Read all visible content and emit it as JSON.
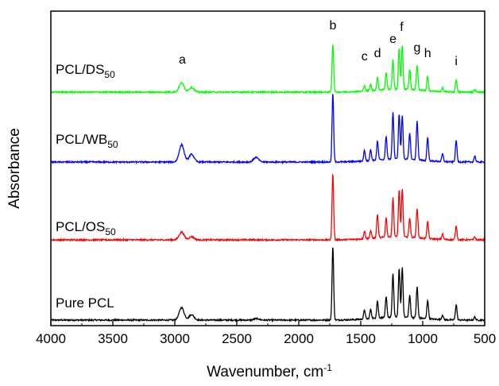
{
  "chart_data": {
    "type": "line",
    "xlabel": "Wavenumber, cm",
    "xlabel_superscript": "-1",
    "ylabel": "Absorbance",
    "xlim": [
      4000,
      500
    ],
    "x_reversed": true,
    "xticks": [
      4000,
      3500,
      3000,
      2500,
      2000,
      1500,
      1000,
      500
    ],
    "yticks_shown": false,
    "grid": false,
    "legend": "none",
    "peak_labels": [
      {
        "text": "a",
        "x": 2940
      },
      {
        "text": "b",
        "x": 1725
      },
      {
        "text": "c",
        "x": 1470
      },
      {
        "text": "d",
        "x": 1365
      },
      {
        "text": "e",
        "x": 1240
      },
      {
        "text": "f",
        "x": 1170
      },
      {
        "text": "g",
        "x": 1045
      },
      {
        "text": "h",
        "x": 960
      },
      {
        "text": "i",
        "x": 730
      }
    ],
    "series": [
      {
        "label_main": "Pure PCL",
        "label_sub": "",
        "color": "#000000",
        "offset": 0,
        "peaks": [
          [
            2945,
            0.16
          ],
          [
            2865,
            0.07
          ],
          [
            2340,
            0.02
          ],
          [
            1725,
            0.95
          ],
          [
            1470,
            0.12
          ],
          [
            1420,
            0.12
          ],
          [
            1365,
            0.22
          ],
          [
            1295,
            0.26
          ],
          [
            1240,
            0.55
          ],
          [
            1190,
            0.62
          ],
          [
            1165,
            0.64
          ],
          [
            1105,
            0.28
          ],
          [
            1045,
            0.4
          ],
          [
            960,
            0.24
          ],
          [
            840,
            0.06
          ],
          [
            730,
            0.2
          ],
          [
            580,
            0.04
          ]
        ]
      },
      {
        "label_main": "PCL/OS",
        "label_sub": "50",
        "color": "#ff0000",
        "offset": 1,
        "peaks": [
          [
            2945,
            0.1
          ],
          [
            2865,
            0.04
          ],
          [
            1725,
            0.85
          ],
          [
            1470,
            0.1
          ],
          [
            1420,
            0.1
          ],
          [
            1365,
            0.3
          ],
          [
            1295,
            0.25
          ],
          [
            1240,
            0.5
          ],
          [
            1190,
            0.6
          ],
          [
            1165,
            0.62
          ],
          [
            1105,
            0.25
          ],
          [
            1045,
            0.38
          ],
          [
            960,
            0.22
          ],
          [
            840,
            0.07
          ],
          [
            730,
            0.18
          ],
          [
            580,
            0.04
          ]
        ]
      },
      {
        "label_main": "PCL/WB",
        "label_sub": "50",
        "color": "#0000ff",
        "offset": 2,
        "peaks": [
          [
            2945,
            0.22
          ],
          [
            2865,
            0.1
          ],
          [
            2345,
            0.06
          ],
          [
            1725,
            0.88
          ],
          [
            1470,
            0.14
          ],
          [
            1420,
            0.14
          ],
          [
            1365,
            0.24
          ],
          [
            1295,
            0.3
          ],
          [
            1240,
            0.6
          ],
          [
            1190,
            0.58
          ],
          [
            1165,
            0.56
          ],
          [
            1105,
            0.34
          ],
          [
            1045,
            0.5
          ],
          [
            960,
            0.3
          ],
          [
            840,
            0.1
          ],
          [
            730,
            0.28
          ],
          [
            580,
            0.08
          ]
        ]
      },
      {
        "label_main": "PCL/DS",
        "label_sub": "50",
        "color": "#00ff00",
        "offset": 3,
        "peaks": [
          [
            2945,
            0.12
          ],
          [
            2865,
            0.06
          ],
          [
            1725,
            0.62
          ],
          [
            1470,
            0.08
          ],
          [
            1420,
            0.08
          ],
          [
            1365,
            0.16
          ],
          [
            1295,
            0.22
          ],
          [
            1240,
            0.38
          ],
          [
            1190,
            0.52
          ],
          [
            1165,
            0.56
          ],
          [
            1105,
            0.26
          ],
          [
            1045,
            0.32
          ],
          [
            960,
            0.18
          ],
          [
            840,
            0.05
          ],
          [
            730,
            0.16
          ],
          [
            580,
            0.03
          ]
        ]
      }
    ]
  }
}
